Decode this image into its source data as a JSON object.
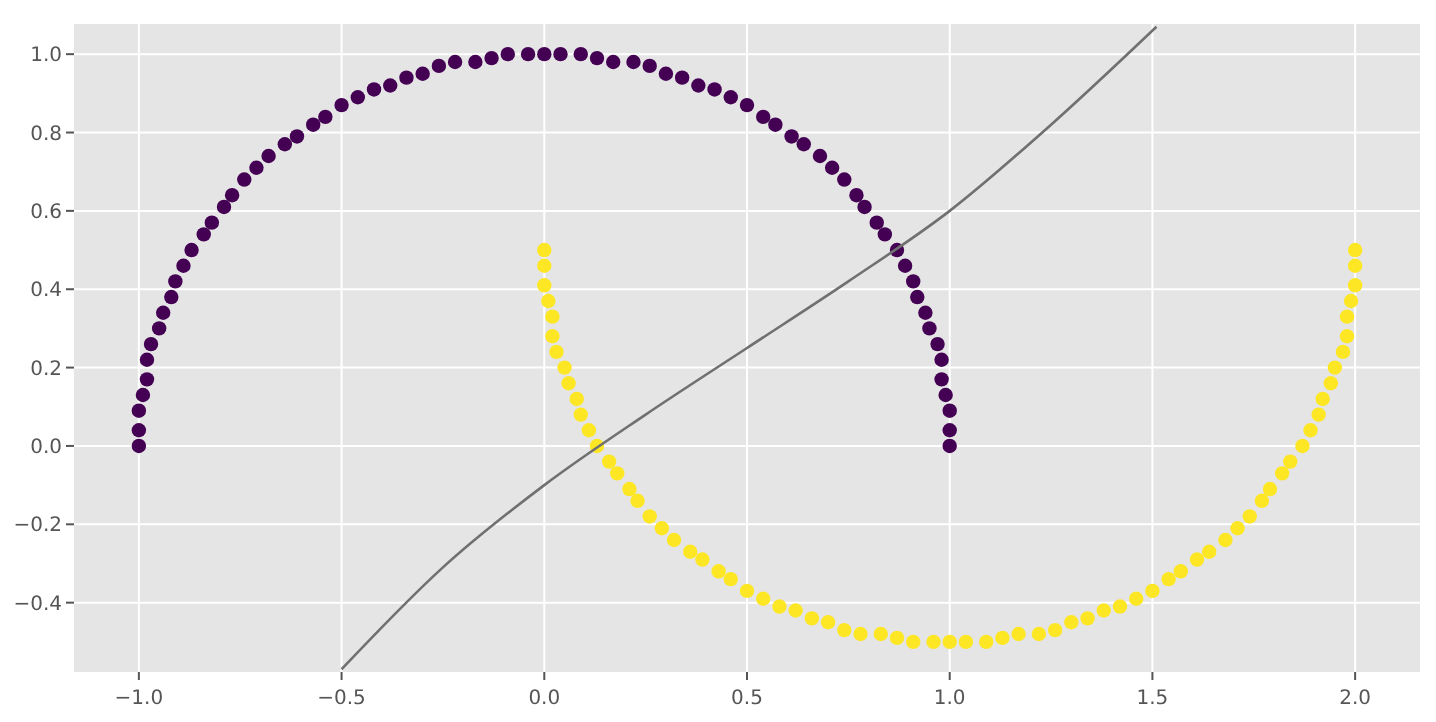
{
  "chart_data": {
    "type": "scatter",
    "xlim": [
      -1.16,
      2.16
    ],
    "ylim": [
      -0.577,
      1.077
    ],
    "xticks": [
      {
        "value": -1,
        "label": "−1.0"
      },
      {
        "value": -0.5,
        "label": "−0.5"
      },
      {
        "value": 0,
        "label": "0.0"
      },
      {
        "value": 0.5,
        "label": "0.5"
      },
      {
        "value": 1,
        "label": "1.0"
      },
      {
        "value": 1.5,
        "label": "1.5"
      },
      {
        "value": 2,
        "label": "2.0"
      }
    ],
    "yticks": [
      {
        "value": -0.4,
        "label": "−0.4"
      },
      {
        "value": -0.2,
        "label": "−0.2"
      },
      {
        "value": 0,
        "label": "0.0"
      },
      {
        "value": 0.2,
        "label": "0.2"
      },
      {
        "value": 0.4,
        "label": "0.4"
      },
      {
        "value": 0.6,
        "label": "0.6"
      },
      {
        "value": 0.8,
        "label": "0.8"
      },
      {
        "value": 1,
        "label": "1.0"
      }
    ],
    "grid": true,
    "marker": "circle",
    "series": [
      {
        "color": "#440154",
        "x": [
          1,
          1,
          1,
          0.99,
          0.98,
          0.98,
          0.97,
          0.95,
          0.94,
          0.92,
          0.91,
          0.89,
          0.87,
          0.84,
          0.82,
          0.79,
          0.77,
          0.74,
          0.71,
          0.68,
          0.64,
          0.61,
          0.57,
          0.54,
          0.5,
          0.46,
          0.42,
          0.38,
          0.34,
          0.3,
          0.26,
          0.22,
          0.17,
          0.13,
          0.09,
          0.04,
          0,
          -0.04,
          -0.09,
          -0.13,
          -0.17,
          -0.22,
          -0.26,
          -0.3,
          -0.34,
          -0.38,
          -0.42,
          -0.46,
          -0.5,
          -0.54,
          -0.57,
          -0.61,
          -0.64,
          -0.68,
          -0.71,
          -0.74,
          -0.77,
          -0.79,
          -0.82,
          -0.84,
          -0.87,
          -0.89,
          -0.91,
          -0.92,
          -0.94,
          -0.95,
          -0.97,
          -0.98,
          -0.98,
          -0.99,
          -1,
          -1,
          -1
        ],
        "values": [
          0,
          0.04,
          0.09,
          0.13,
          0.17,
          0.22,
          0.26,
          0.3,
          0.34,
          0.38,
          0.42,
          0.46,
          0.5,
          0.54,
          0.57,
          0.61,
          0.64,
          0.68,
          0.71,
          0.74,
          0.77,
          0.79,
          0.82,
          0.84,
          0.87,
          0.89,
          0.91,
          0.92,
          0.94,
          0.95,
          0.97,
          0.98,
          0.98,
          0.99,
          1,
          1,
          1,
          1,
          1,
          0.99,
          0.98,
          0.98,
          0.97,
          0.95,
          0.94,
          0.92,
          0.91,
          0.89,
          0.87,
          0.84,
          0.82,
          0.79,
          0.77,
          0.74,
          0.71,
          0.68,
          0.64,
          0.61,
          0.57,
          0.54,
          0.5,
          0.46,
          0.42,
          0.38,
          0.34,
          0.3,
          0.26,
          0.22,
          0.17,
          0.13,
          0.09,
          0.04,
          0
        ]
      },
      {
        "color": "#fde725",
        "x": [
          0,
          0,
          0,
          0.01,
          0.02,
          0.02,
          0.03,
          0.05,
          0.06,
          0.08,
          0.09,
          0.11,
          0.13,
          0.16,
          0.18,
          0.21,
          0.23,
          0.26,
          0.29,
          0.32,
          0.36,
          0.39,
          0.43,
          0.46,
          0.5,
          0.54,
          0.58,
          0.62,
          0.66,
          0.7,
          0.74,
          0.78,
          0.83,
          0.87,
          0.91,
          0.96,
          1,
          1.04,
          1.09,
          1.13,
          1.17,
          1.22,
          1.26,
          1.3,
          1.34,
          1.38,
          1.42,
          1.46,
          1.5,
          1.54,
          1.57,
          1.61,
          1.64,
          1.68,
          1.71,
          1.74,
          1.77,
          1.79,
          1.82,
          1.84,
          1.87,
          1.89,
          1.91,
          1.92,
          1.94,
          1.95,
          1.97,
          1.98,
          1.98,
          1.99,
          2,
          2,
          2
        ],
        "values": [
          0.5,
          0.46,
          0.41,
          0.37,
          0.33,
          0.28,
          0.24,
          0.2,
          0.16,
          0.12,
          0.08,
          0.04,
          0,
          -0.04,
          -0.07,
          -0.11,
          -0.14,
          -0.18,
          -0.21,
          -0.24,
          -0.27,
          -0.29,
          -0.32,
          -0.34,
          -0.37,
          -0.39,
          -0.41,
          -0.42,
          -0.44,
          -0.45,
          -0.47,
          -0.48,
          -0.48,
          -0.49,
          -0.5,
          -0.5,
          -0.5,
          -0.5,
          -0.5,
          -0.49,
          -0.48,
          -0.48,
          -0.47,
          -0.45,
          -0.44,
          -0.42,
          -0.41,
          -0.39,
          -0.37,
          -0.34,
          -0.32,
          -0.29,
          -0.27,
          -0.24,
          -0.21,
          -0.18,
          -0.14,
          -0.11,
          -0.07,
          -0.04,
          0,
          0.04,
          0.08,
          0.12,
          0.16,
          0.2,
          0.24,
          0.28,
          0.33,
          0.37,
          0.41,
          0.46,
          0.5
        ]
      },
      {
        "type": "line",
        "color": "#707070",
        "marker": "none",
        "x": [
          -0.5,
          -0.25,
          0,
          0.25,
          0.5,
          0.75,
          1,
          1.25,
          1.51
        ],
        "values": [
          -0.57,
          -0.31,
          -0.1,
          0.08,
          0.25,
          0.42,
          0.6,
          0.82,
          1.07
        ]
      }
    ]
  }
}
